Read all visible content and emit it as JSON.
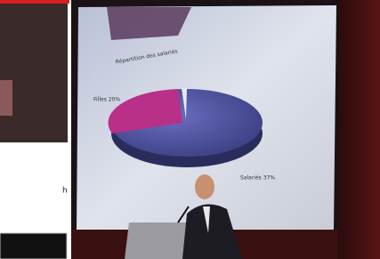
{
  "photo": {
    "slide": {
      "title": "Répartition des salariés",
      "labels": [
        "Filles 20%",
        "Salariés 37%"
      ]
    },
    "side_text": "h"
  }
}
